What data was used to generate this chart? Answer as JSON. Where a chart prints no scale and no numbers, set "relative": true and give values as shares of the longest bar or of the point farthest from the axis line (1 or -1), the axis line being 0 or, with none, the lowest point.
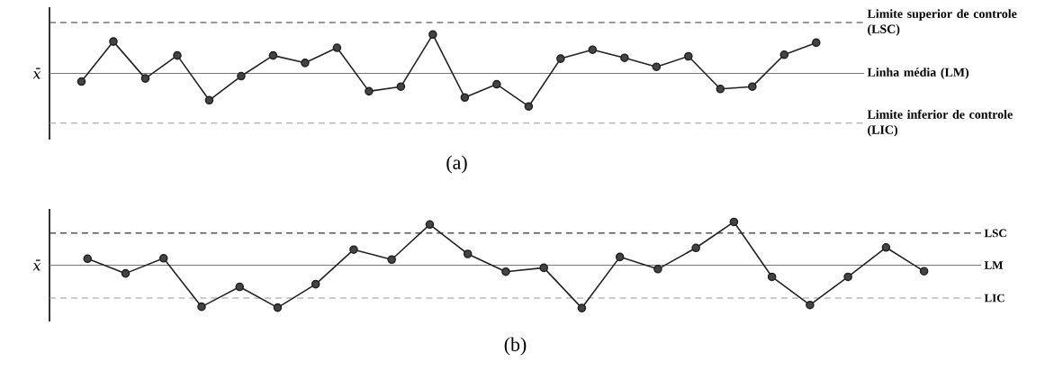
{
  "chart_data": [
    {
      "type": "line",
      "title": "(a)",
      "ylabel": "x̄",
      "relative": true,
      "marker": "circle",
      "line_style": "solid",
      "categories": [
        null,
        null,
        null,
        null,
        null,
        null,
        null,
        null,
        null,
        null,
        null,
        null,
        null,
        null,
        null,
        null,
        null,
        null,
        null,
        null,
        null,
        null,
        null,
        null
      ],
      "series": [
        {
          "color": "#222222",
          "values": [
            -0.21,
            0.82,
            -0.13,
            0.46,
            -0.69,
            -0.07,
            0.46,
            0.27,
            0.66,
            -0.46,
            -0.34,
            1,
            -0.62,
            -0.28,
            -0.85,
            0.38,
            0.61,
            0.4,
            0.17,
            0.44,
            -0.4,
            -0.34,
            0.48,
            0.79
          ]
        }
      ],
      "ref_lines": [
        {
          "axis": "y",
          "value": 1.31,
          "label": "Limite superior de controle (LSC)",
          "line_style": "dashed",
          "color": "#333333"
        },
        {
          "axis": "y",
          "value": 0,
          "label": "Linha média (LM)",
          "line_style": "solid",
          "color": "#777777"
        },
        {
          "axis": "y",
          "value": -1.28,
          "label": "Limite inferior de controle (LIC)",
          "line_style": "dashed",
          "color": "#999999"
        }
      ]
    },
    {
      "type": "line",
      "title": "(b)",
      "ylabel": "x̄",
      "relative": true,
      "marker": "circle",
      "line_style": "solid",
      "categories": [
        null,
        null,
        null,
        null,
        null,
        null,
        null,
        null,
        null,
        null,
        null,
        null,
        null,
        null,
        null,
        null,
        null,
        null,
        null,
        null,
        null,
        null,
        null
      ],
      "series": [
        {
          "color": "#222222",
          "values": [
            0.15,
            -0.19,
            0.16,
            -0.96,
            -0.5,
            -0.98,
            -0.44,
            0.36,
            0.13,
            0.94,
            0.26,
            -0.15,
            -0.06,
            -0.99,
            0.19,
            -0.09,
            0.4,
            1,
            -0.27,
            -0.92,
            -0.27,
            0.41,
            -0.14
          ]
        }
      ],
      "ref_lines": [
        {
          "axis": "y",
          "value": 0.74,
          "label": "LSC",
          "line_style": "dashed",
          "color": "#333333"
        },
        {
          "axis": "y",
          "value": 0,
          "label": "LM",
          "line_style": "solid",
          "color": "#777777"
        },
        {
          "axis": "y",
          "value": -0.76,
          "label": "LIC",
          "line_style": "dashed",
          "color": "#999999"
        }
      ]
    }
  ]
}
